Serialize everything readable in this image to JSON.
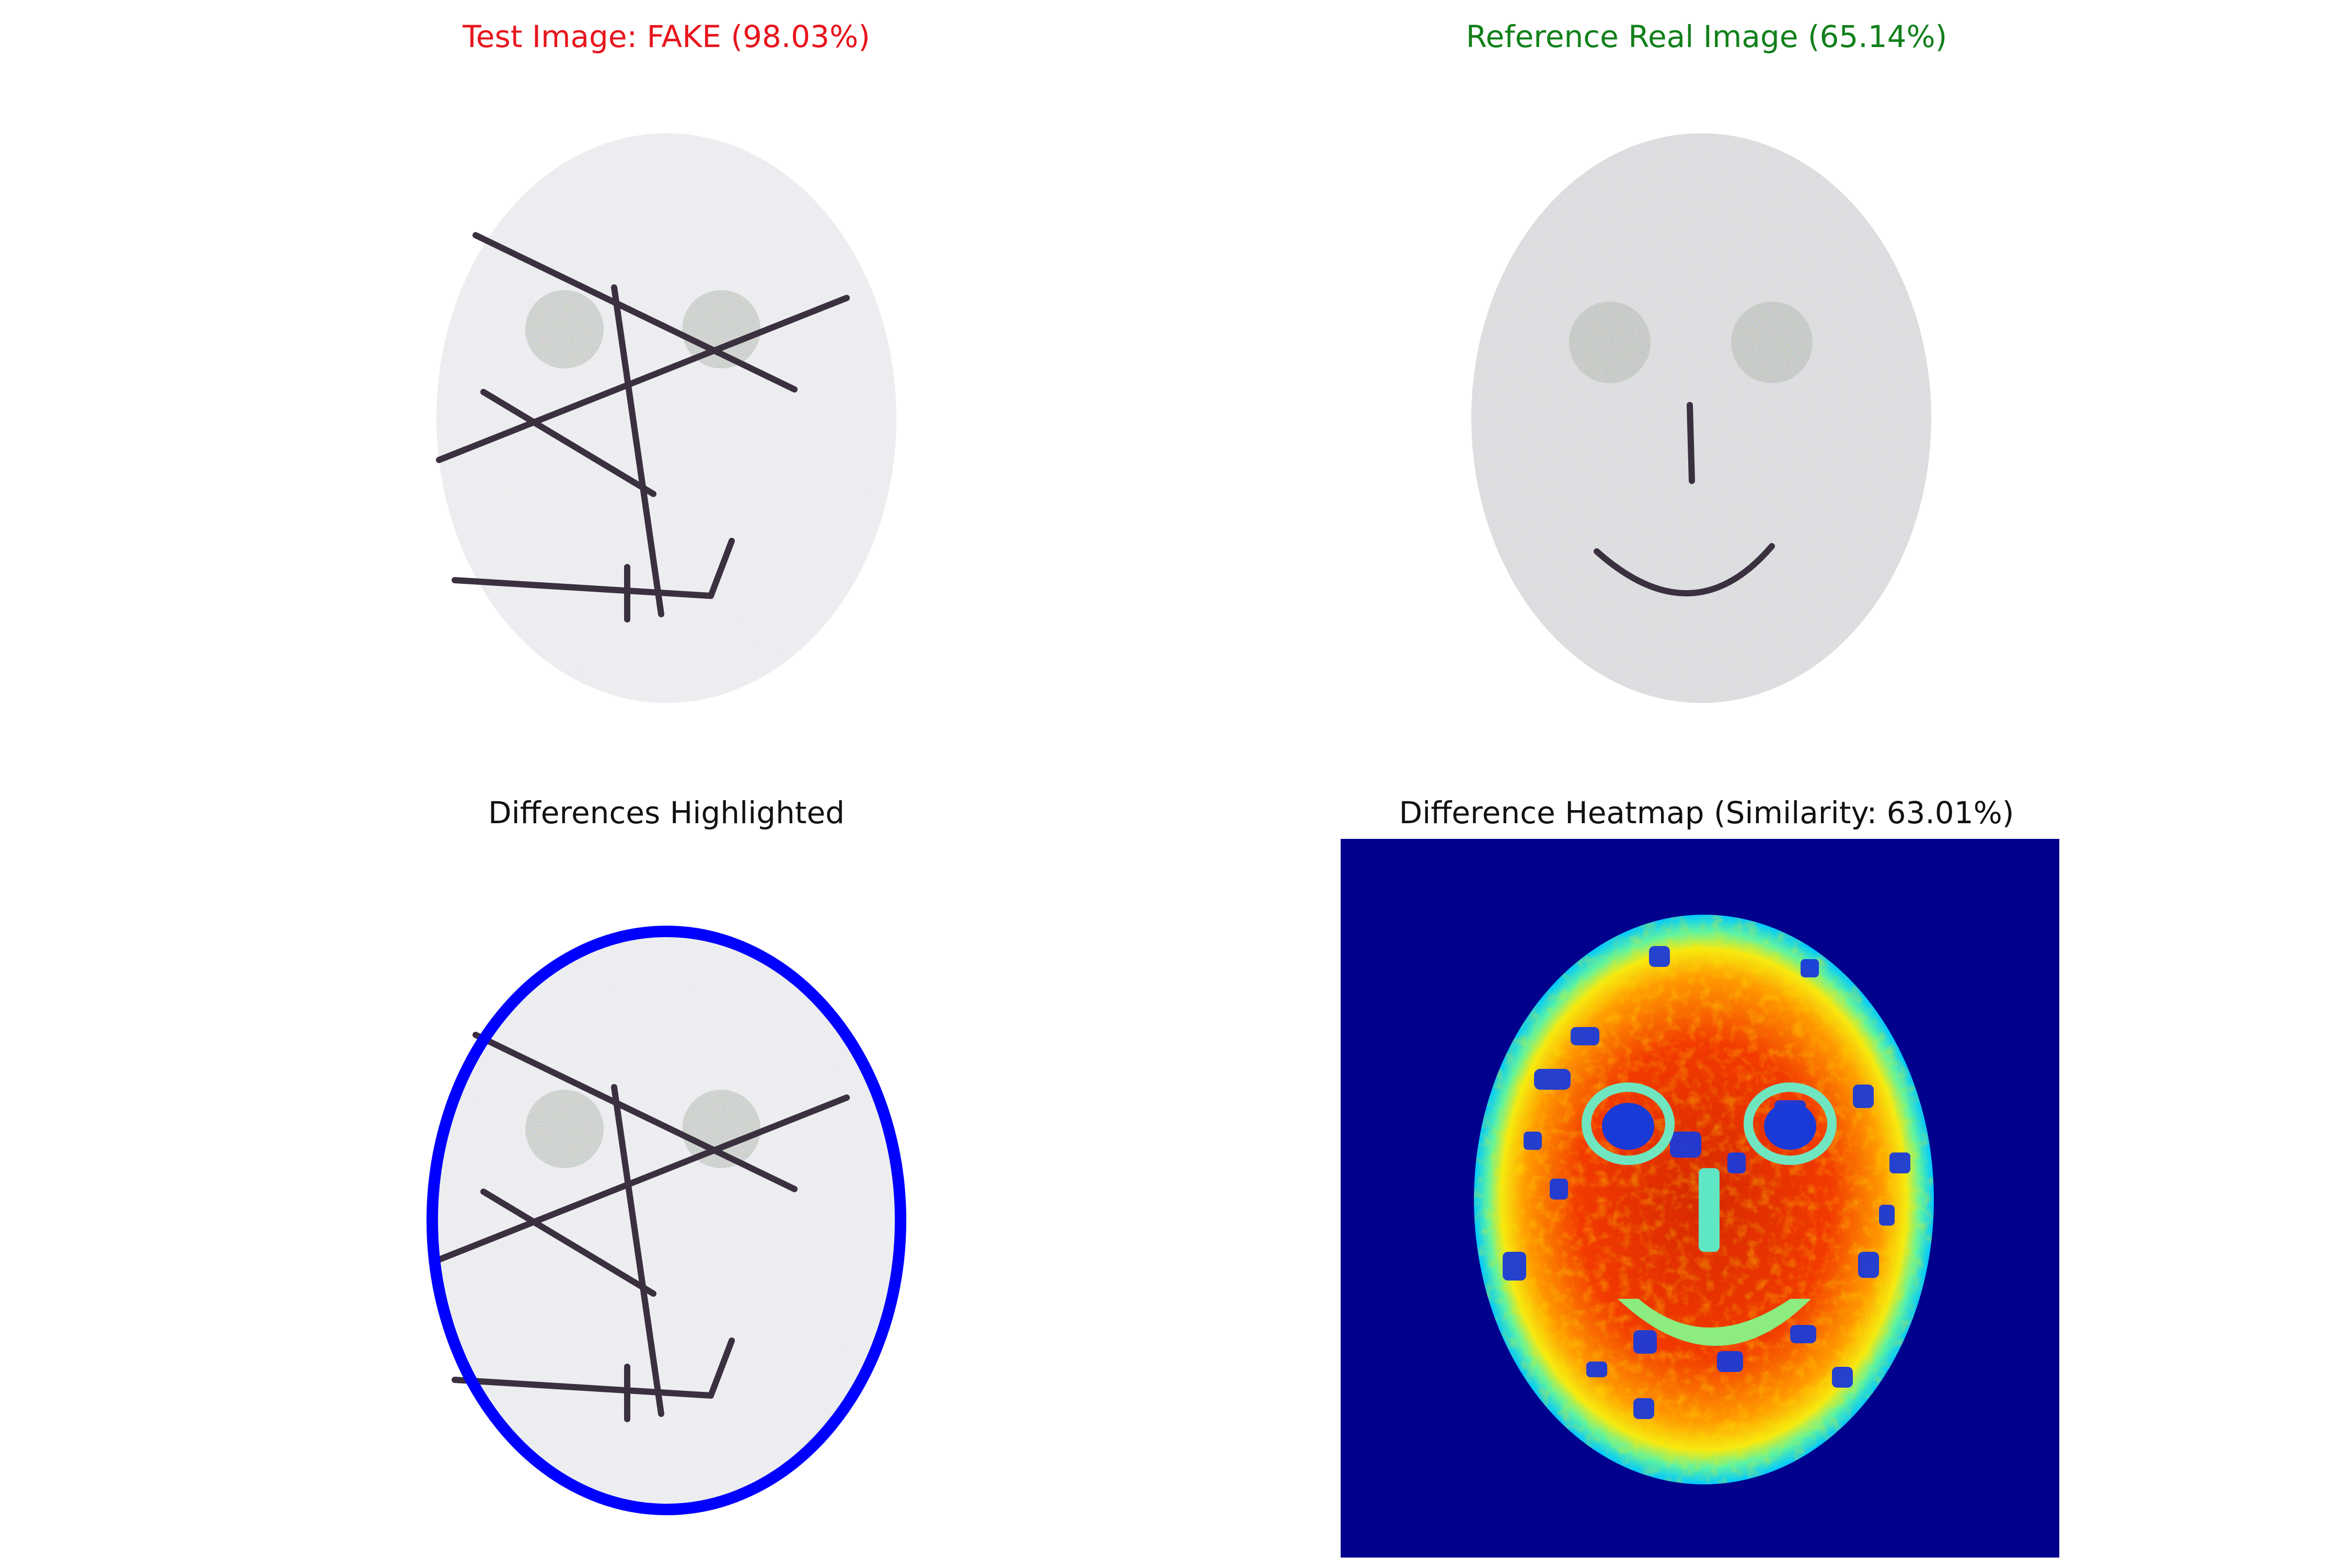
{
  "titles": {
    "test": "Test Image: FAKE (98.03%)",
    "reference": "Reference Real Image (65.14%)",
    "differences": "Differences Highlighted",
    "heatmap": "Difference Heatmap (Similarity: 63.01%)"
  },
  "colors": {
    "fake": "#e8141c",
    "real": "#11801a",
    "neutral": "#111111",
    "contour": "#0000ff",
    "heatmap_background": "#00008c"
  },
  "scores": {
    "test_fake_confidence_pct": 98.03,
    "reference_real_confidence_pct": 65.14,
    "similarity_pct": 63.01
  }
}
